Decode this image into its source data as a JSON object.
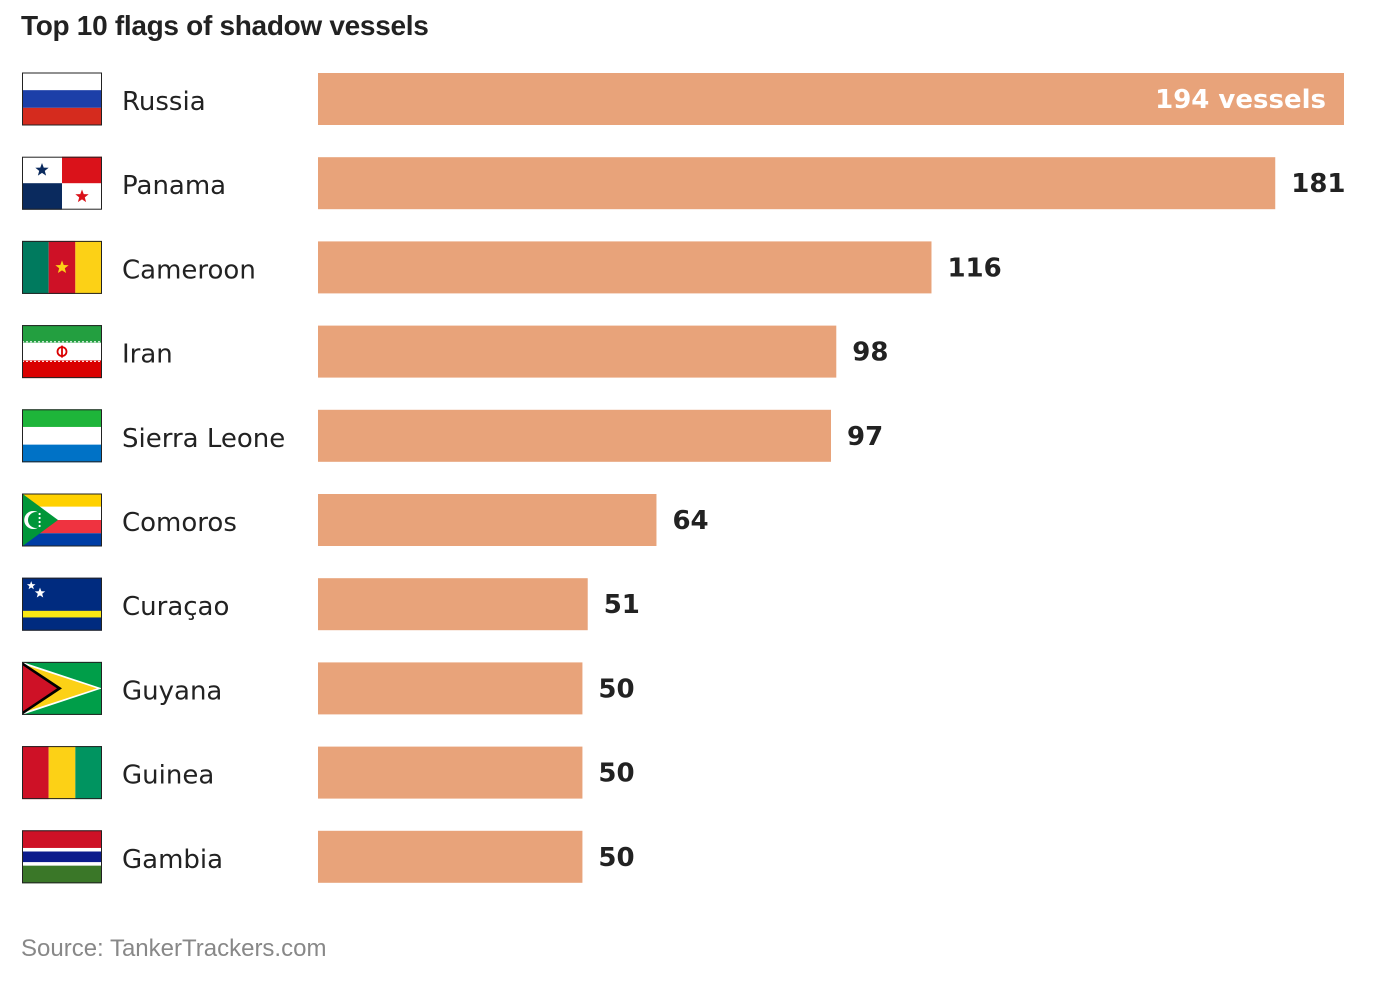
{
  "chart_data": {
    "type": "bar",
    "orientation": "horizontal",
    "title": "Top 10 flags of shadow vessels",
    "categories": [
      "Russia",
      "Panama",
      "Cameroon",
      "Iran",
      "Sierra Leone",
      "Comoros",
      "Curaçao",
      "Guyana",
      "Guinea",
      "Gambia"
    ],
    "values": [
      194,
      181,
      116,
      98,
      97,
      64,
      51,
      50,
      50,
      50
    ],
    "value_labels": [
      "194 vessels",
      "181",
      "116",
      "98",
      "97",
      "64",
      "51",
      "50",
      "50",
      "50"
    ],
    "xlim": [
      0,
      194
    ],
    "grid": false,
    "legend": "none",
    "bar_color": "#E8A37A",
    "flag_icons": [
      "russia-flag-icon",
      "panama-flag-icon",
      "cameroon-flag-icon",
      "iran-flag-icon",
      "sierra-leone-flag-icon",
      "comoros-flag-icon",
      "curacao-flag-icon",
      "guyana-flag-icon",
      "guinea-flag-icon",
      "gambia-flag-icon"
    ]
  },
  "source": "Source: TankerTrackers.com",
  "colors": {
    "bar": "#E8A37A",
    "text": "#222222",
    "source_text": "#888888"
  }
}
